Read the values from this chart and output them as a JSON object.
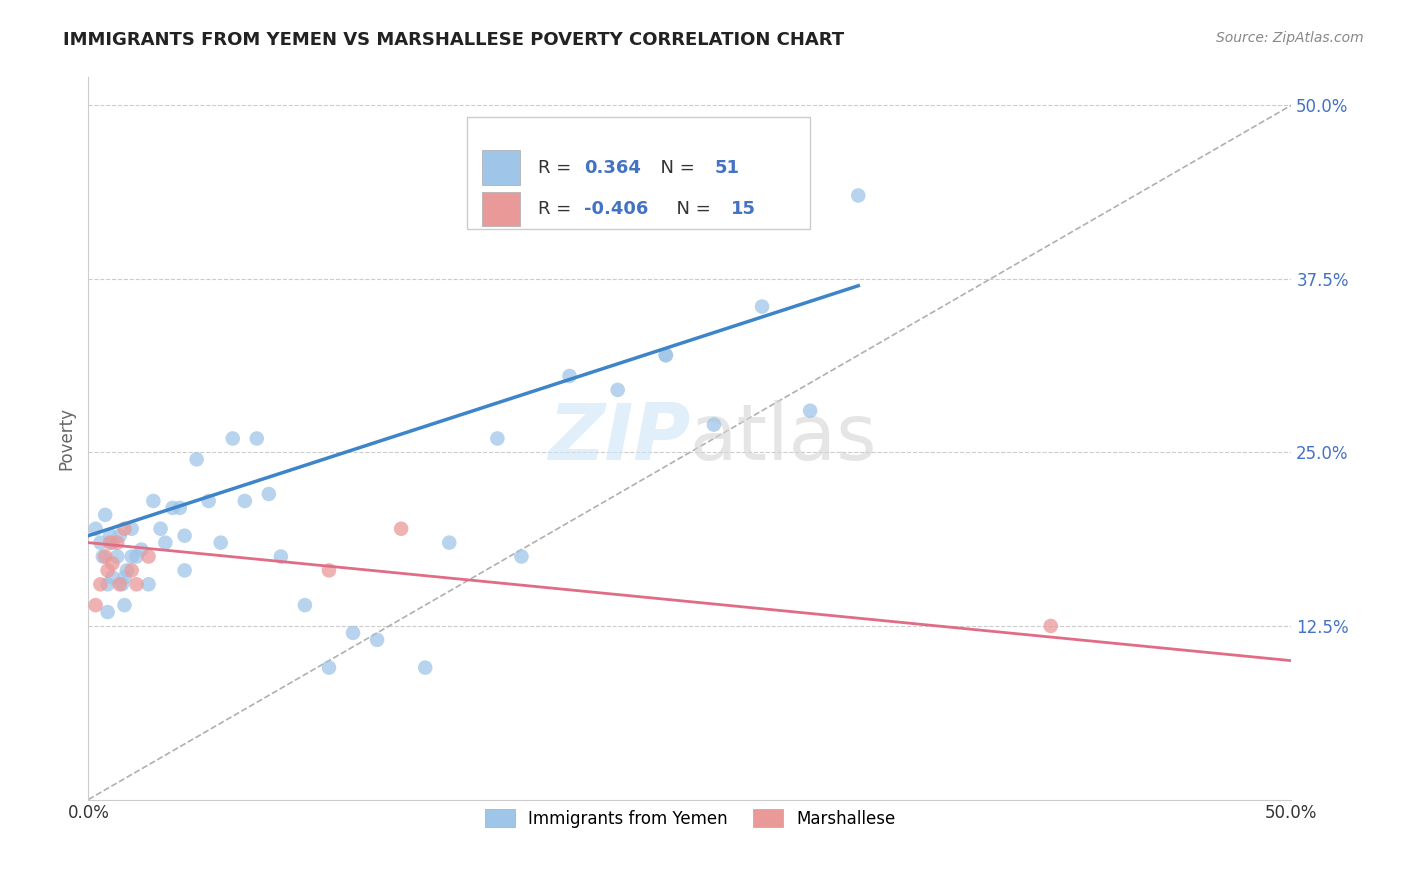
{
  "title": "IMMIGRANTS FROM YEMEN VS MARSHALLESE POVERTY CORRELATION CHART",
  "source": "Source: ZipAtlas.com",
  "ylabel": "Poverty",
  "blue_color": "#9fc5e8",
  "pink_color": "#ea9999",
  "blue_line_color": "#3d85c8",
  "pink_line_color": "#e06c85",
  "blue_x": [
    0.003,
    0.005,
    0.006,
    0.007,
    0.008,
    0.008,
    0.009,
    0.01,
    0.01,
    0.012,
    0.013,
    0.014,
    0.015,
    0.015,
    0.016,
    0.018,
    0.018,
    0.02,
    0.022,
    0.025,
    0.027,
    0.03,
    0.032,
    0.035,
    0.038,
    0.04,
    0.04,
    0.045,
    0.05,
    0.055,
    0.06,
    0.065,
    0.07,
    0.075,
    0.08,
    0.09,
    0.1,
    0.11,
    0.12,
    0.14,
    0.15,
    0.17,
    0.18,
    0.2,
    0.22,
    0.24,
    0.26,
    0.28,
    0.3,
    0.32,
    0.24
  ],
  "blue_y": [
    0.195,
    0.185,
    0.175,
    0.205,
    0.135,
    0.155,
    0.19,
    0.185,
    0.16,
    0.175,
    0.19,
    0.155,
    0.16,
    0.14,
    0.165,
    0.195,
    0.175,
    0.175,
    0.18,
    0.155,
    0.215,
    0.195,
    0.185,
    0.21,
    0.21,
    0.165,
    0.19,
    0.245,
    0.215,
    0.185,
    0.26,
    0.215,
    0.26,
    0.22,
    0.175,
    0.14,
    0.095,
    0.12,
    0.115,
    0.095,
    0.185,
    0.26,
    0.175,
    0.305,
    0.295,
    0.32,
    0.27,
    0.355,
    0.28,
    0.435,
    0.32
  ],
  "pink_x": [
    0.003,
    0.005,
    0.007,
    0.008,
    0.009,
    0.01,
    0.012,
    0.013,
    0.015,
    0.018,
    0.02,
    0.025,
    0.1,
    0.13,
    0.4
  ],
  "pink_y": [
    0.14,
    0.155,
    0.175,
    0.165,
    0.185,
    0.17,
    0.185,
    0.155,
    0.195,
    0.165,
    0.155,
    0.175,
    0.165,
    0.195,
    0.125
  ],
  "blue_line_x": [
    0.0,
    0.32
  ],
  "blue_line_y": [
    0.19,
    0.37
  ],
  "pink_line_x": [
    0.0,
    0.5
  ],
  "pink_line_y": [
    0.185,
    0.1
  ],
  "ref_line": [
    [
      0.0,
      0.0
    ],
    [
      0.5,
      0.5
    ]
  ],
  "xlim": [
    0.0,
    0.5
  ],
  "ylim": [
    0.0,
    0.52
  ],
  "y_ticks": [
    0.0,
    0.125,
    0.25,
    0.375,
    0.5
  ],
  "x_ticks": [
    0.0,
    0.125,
    0.25,
    0.375,
    0.5
  ]
}
